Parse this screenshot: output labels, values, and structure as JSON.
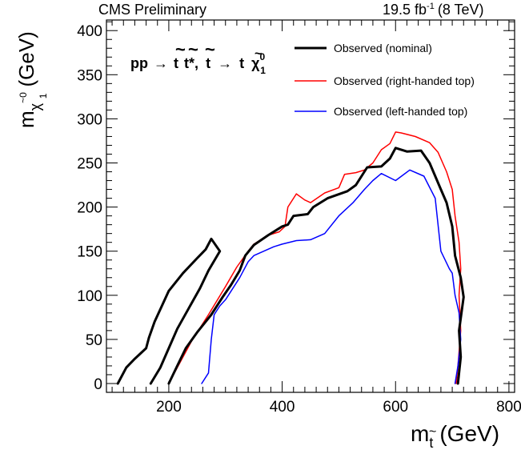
{
  "header": {
    "experiment": "CMS Preliminary",
    "lumi": "19.5 fb",
    "lumi_exp": "-1",
    "energy": "(8 TeV)"
  },
  "chart_data": {
    "type": "line",
    "xlabel": {
      "main": "m",
      "sub": "t",
      "accent": "~",
      "unit": "(GeV)"
    },
    "ylabel": {
      "main": "m",
      "sub1": "χ",
      "sub1_sup": "~0",
      "sub2": "1",
      "unit": "(GeV)"
    },
    "xlim": [
      90,
      810
    ],
    "ylim": [
      -10,
      412
    ],
    "x_ticks": [
      200,
      400,
      600,
      800
    ],
    "y_ticks": [
      0,
      50,
      100,
      150,
      200,
      250,
      300,
      350,
      400
    ],
    "grid": false,
    "legend_position": "top-right",
    "process": {
      "lhs": "pp",
      "arrow": "→",
      "t1": "t",
      "t2": "t*",
      "comma": ",",
      "t3": "t",
      "arrow2": "→",
      "t4": "t",
      "chi": "χ",
      "chi_sup": "0",
      "chi_sub": "1",
      "tilde": "~"
    },
    "series": [
      {
        "name": "Observed (nominal)",
        "color": "#000000",
        "width": 3,
        "segments": [
          [
            [
              110,
              0
            ],
            [
              125,
              18
            ],
            [
              140,
              28
            ],
            [
              160,
              40
            ],
            [
              165,
              52
            ],
            [
              175,
              70
            ],
            [
              200,
              105
            ],
            [
              225,
              125
            ],
            [
              250,
              142
            ],
            [
              265,
              152
            ],
            [
              275,
              164
            ],
            [
              290,
              150
            ],
            [
              270,
              128
            ],
            [
              255,
              108
            ],
            [
              235,
              85
            ],
            [
              215,
              62
            ],
            [
              200,
              40
            ],
            [
              185,
              18
            ],
            [
              168,
              0
            ]
          ],
          [
            [
              200,
              0
            ],
            [
              215,
              20
            ],
            [
              230,
              40
            ],
            [
              250,
              58
            ],
            [
              275,
              78
            ],
            [
              295,
              98
            ],
            [
              310,
              112
            ],
            [
              325,
              128
            ],
            [
              335,
              145
            ],
            [
              350,
              157
            ],
            [
              375,
              168
            ],
            [
              400,
              178
            ],
            [
              410,
              180
            ],
            [
              420,
              190
            ],
            [
              445,
              192
            ],
            [
              455,
              200
            ],
            [
              480,
              210
            ],
            [
              515,
              218
            ],
            [
              530,
              225
            ],
            [
              550,
              245
            ],
            [
              575,
              246
            ],
            [
              590,
              255
            ],
            [
              600,
              267
            ],
            [
              620,
              263
            ],
            [
              645,
              264
            ],
            [
              660,
              250
            ],
            [
              680,
              220
            ],
            [
              690,
              205
            ],
            [
              700,
              178
            ],
            [
              705,
              145
            ],
            [
              715,
              120
            ],
            [
              720,
              98
            ],
            [
              712,
              60
            ],
            [
              715,
              30
            ],
            [
              710,
              0
            ]
          ]
        ]
      },
      {
        "name": "Observed (right-handed top)",
        "color": "#ff0000",
        "width": 1.5,
        "segments": [
          [
            [
              200,
              0
            ],
            [
              215,
              18
            ],
            [
              240,
              48
            ],
            [
              270,
              78
            ],
            [
              300,
              110
            ],
            [
              320,
              132
            ],
            [
              340,
              150
            ],
            [
              350,
              158
            ],
            [
              375,
              168
            ],
            [
              395,
              172
            ],
            [
              405,
              178
            ],
            [
              410,
              200
            ],
            [
              425,
              215
            ],
            [
              440,
              208
            ],
            [
              450,
              205
            ],
            [
              475,
              216
            ],
            [
              500,
              222
            ],
            [
              510,
              237
            ],
            [
              530,
              239
            ],
            [
              545,
              242
            ],
            [
              560,
              250
            ],
            [
              575,
              265
            ],
            [
              590,
              272
            ],
            [
              600,
              285
            ],
            [
              610,
              284
            ],
            [
              635,
              280
            ],
            [
              660,
              273
            ],
            [
              675,
              262
            ],
            [
              690,
              240
            ],
            [
              700,
              220
            ],
            [
              705,
              190
            ],
            [
              712,
              160
            ],
            [
              715,
              130
            ],
            [
              712,
              100
            ],
            [
              715,
              60
            ],
            [
              710,
              20
            ],
            [
              707,
              0
            ]
          ]
        ]
      },
      {
        "name": "Observed (left-handed top)",
        "color": "#0000ff",
        "width": 1.5,
        "segments": [
          [
            [
              258,
              0
            ],
            [
              270,
              12
            ],
            [
              275,
              50
            ],
            [
              280,
              78
            ],
            [
              290,
              88
            ],
            [
              300,
              95
            ],
            [
              325,
              120
            ],
            [
              340,
              138
            ],
            [
              350,
              145
            ],
            [
              385,
              155
            ],
            [
              400,
              158
            ],
            [
              425,
              162
            ],
            [
              450,
              163
            ],
            [
              475,
              170
            ],
            [
              500,
              190
            ],
            [
              525,
              205
            ],
            [
              545,
              220
            ],
            [
              560,
              230
            ],
            [
              575,
              238
            ],
            [
              600,
              230
            ],
            [
              625,
              242
            ],
            [
              650,
              235
            ],
            [
              670,
              210
            ],
            [
              680,
              150
            ],
            [
              695,
              130
            ],
            [
              700,
              125
            ],
            [
              705,
              100
            ],
            [
              712,
              80
            ],
            [
              715,
              50
            ],
            [
              710,
              20
            ],
            [
              705,
              0
            ]
          ]
        ]
      }
    ]
  }
}
